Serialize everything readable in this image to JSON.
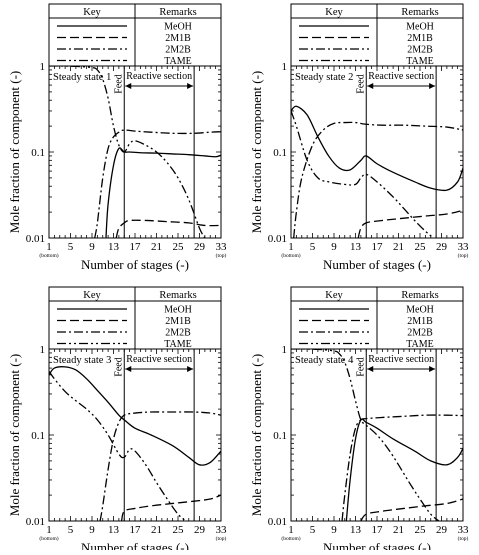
{
  "chart_data": {
    "shared": {
      "type": "line",
      "y_scale": "log",
      "xlim": [
        1,
        33
      ],
      "ylim": [
        0.01,
        1
      ],
      "x_ticks": [
        "1",
        "5",
        "9",
        "13",
        "17",
        "21",
        "25",
        "29",
        "33"
      ],
      "x_tick_values": [
        1,
        5,
        9,
        13,
        17,
        21,
        25,
        29,
        33
      ],
      "x_sub_labels": {
        "bottom": "(bottom)",
        "top": "(top)"
      },
      "y_ticks": [
        "0.01",
        "0.1",
        "1"
      ],
      "y_tick_values": [
        0.01,
        0.1,
        1
      ],
      "xlabel": "Number of stages (-)",
      "ylabel": "Mole fraction of component (-)",
      "key_header": "Key",
      "remarks_header": "Remarks",
      "feed_label": "Feed",
      "feed_stage": 15,
      "reactive_label": "Reactive section",
      "reactive_section": [
        15,
        28
      ],
      "grid": false,
      "legend": [
        {
          "name": "MeOH",
          "dash": "solid"
        },
        {
          "name": "2M1B",
          "dash": "dash"
        },
        {
          "name": "2M2B",
          "dash": "dashdot"
        },
        {
          "name": "TAME",
          "dash": "dashdotdot"
        }
      ]
    },
    "panels": [
      {
        "title": "Steady state 1",
        "series": [
          {
            "name": "MeOH",
            "x": [
              11.6,
              12,
              13,
              14,
              15,
              16,
              18,
              21,
              24,
              27,
              30,
              32,
              33
            ],
            "y": [
              0.01,
              0.025,
              0.07,
              0.11,
              0.1,
              0.1,
              0.098,
              0.097,
              0.095,
              0.093,
              0.09,
              0.088,
              0.092
            ]
          },
          {
            "name": "2M1B",
            "x": [
              13.5,
              14,
              15,
              16,
              19,
              23,
              27,
              30,
              33
            ],
            "y": [
              0.01,
              0.013,
              0.015,
              0.016,
              0.016,
              0.0155,
              0.015,
              0.014,
              0.014
            ]
          },
          {
            "name": "2M2B",
            "x": [
              9.5,
              10,
              11,
              12,
              13,
              14,
              15,
              17,
              20,
              24,
              28,
              31,
              33
            ],
            "y": [
              0.01,
              0.015,
              0.05,
              0.11,
              0.15,
              0.17,
              0.18,
              0.175,
              0.17,
              0.165,
              0.165,
              0.17,
              0.172
            ]
          },
          {
            "name": "TAME",
            "x": [
              1,
              3,
              6,
              9,
              10,
              11,
              12,
              13,
              14,
              15,
              16,
              17,
              19,
              21,
              23,
              25,
              27,
              29,
              30
            ],
            "y": [
              1,
              1,
              0.99,
              0.96,
              0.9,
              0.7,
              0.42,
              0.2,
              0.12,
              0.1,
              0.125,
              0.135,
              0.12,
              0.1,
              0.075,
              0.05,
              0.028,
              0.013,
              0.01
            ]
          }
        ]
      },
      {
        "title": "Steady state 2",
        "series": [
          {
            "name": "MeOH",
            "x": [
              1,
              2,
              4,
              6,
              8,
              10,
              12,
              14,
              15,
              17,
              20,
              24,
              27,
              30,
              32,
              33
            ],
            "y": [
              0.3,
              0.34,
              0.27,
              0.15,
              0.09,
              0.065,
              0.062,
              0.08,
              0.09,
              0.073,
              0.058,
              0.045,
              0.038,
              0.036,
              0.045,
              0.065
            ]
          },
          {
            "name": "2M1B",
            "x": [
              13.5,
              14,
              15,
              18,
              22,
              26,
              30,
              33
            ],
            "y": [
              0.01,
              0.013,
              0.015,
              0.016,
              0.017,
              0.018,
              0.019,
              0.021
            ]
          },
          {
            "name": "2M2B",
            "x": [
              1.5,
              2,
              3,
              5,
              7,
              9,
              11,
              13,
              15,
              18,
              22,
              26,
              30,
              33
            ],
            "y": [
              0.01,
              0.02,
              0.05,
              0.12,
              0.18,
              0.215,
              0.22,
              0.22,
              0.21,
              0.205,
              0.205,
              0.2,
              0.195,
              0.18
            ]
          },
          {
            "name": "TAME",
            "x": [
              1,
              2,
              4,
              6,
              8,
              11,
              13,
              14,
              15,
              17,
              20,
              22,
              24,
              26,
              27.5
            ],
            "y": [
              0.3,
              0.2,
              0.08,
              0.05,
              0.045,
              0.042,
              0.042,
              0.05,
              0.055,
              0.045,
              0.03,
              0.022,
              0.016,
              0.012,
              0.01
            ]
          }
        ]
      },
      {
        "title": "Steady state 3",
        "series": [
          {
            "name": "MeOH",
            "x": [
              1,
              2,
              4,
              6,
              8,
              10,
              12,
              14,
              15,
              17,
              20,
              24,
              27,
              29,
              31,
              33
            ],
            "y": [
              0.5,
              0.6,
              0.62,
              0.57,
              0.45,
              0.33,
              0.24,
              0.17,
              0.15,
              0.12,
              0.1,
              0.075,
              0.055,
              0.045,
              0.048,
              0.065
            ]
          },
          {
            "name": "2M1B",
            "x": [
              14.5,
              15,
              17,
              20,
              24,
              28,
              31,
              33
            ],
            "y": [
              0.01,
              0.013,
              0.014,
              0.015,
              0.016,
              0.017,
              0.018,
              0.02
            ]
          },
          {
            "name": "2M2B",
            "x": [
              10.5,
              11,
              12,
              13,
              14,
              15,
              17,
              20,
              24,
              28,
              31,
              33
            ],
            "y": [
              0.01,
              0.015,
              0.04,
              0.09,
              0.14,
              0.17,
              0.18,
              0.185,
              0.185,
              0.185,
              0.18,
              0.17
            ]
          },
          {
            "name": "TAME",
            "x": [
              1,
              2,
              4,
              6,
              8,
              10,
              12,
              14,
              15,
              16,
              17,
              19,
              21,
              23,
              25,
              26.5
            ],
            "y": [
              0.55,
              0.45,
              0.32,
              0.25,
              0.2,
              0.15,
              0.1,
              0.06,
              0.055,
              0.068,
              0.065,
              0.045,
              0.028,
              0.018,
              0.012,
              0.01
            ]
          }
        ]
      },
      {
        "title": "Steady state 4",
        "series": [
          {
            "name": "MeOH",
            "x": [
              11.3,
              12,
              13,
              14,
              15,
              17,
              20,
              24,
              27,
              30,
              32,
              33
            ],
            "y": [
              0.01,
              0.03,
              0.09,
              0.15,
              0.14,
              0.12,
              0.09,
              0.065,
              0.05,
              0.045,
              0.055,
              0.07
            ]
          },
          {
            "name": "2M1B",
            "x": [
              14,
              15,
              18,
              22,
              26,
              30,
              33
            ],
            "y": [
              0.01,
              0.012,
              0.013,
              0.014,
              0.015,
              0.016,
              0.018
            ]
          },
          {
            "name": "2M2B",
            "x": [
              10.5,
              11,
              12,
              13,
              14,
              15,
              18,
              22,
              26,
              30,
              33
            ],
            "y": [
              0.01,
              0.02,
              0.06,
              0.12,
              0.15,
              0.155,
              0.16,
              0.165,
              0.17,
              0.17,
              0.168
            ]
          },
          {
            "name": "TAME",
            "x": [
              1,
              3,
              6,
              9,
              10,
              11,
              12,
              13,
              14,
              15,
              17,
              19,
              21,
              23,
              25,
              27,
              28.5
            ],
            "y": [
              1,
              1,
              0.99,
              0.95,
              0.88,
              0.7,
              0.45,
              0.25,
              0.15,
              0.13,
              0.1,
              0.07,
              0.045,
              0.028,
              0.018,
              0.012,
              0.01
            ]
          }
        ]
      }
    ]
  }
}
